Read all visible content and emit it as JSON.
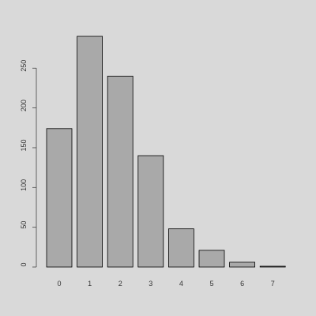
{
  "chart_data": {
    "type": "bar",
    "title": "",
    "xlabel": "",
    "ylabel": "",
    "categories": [
      "0",
      "1",
      "2",
      "3",
      "4",
      "5",
      "6",
      "7"
    ],
    "values": [
      174,
      290,
      240,
      140,
      48,
      21,
      6,
      1
    ],
    "ylim": [
      0,
      290
    ],
    "yticks": [
      0,
      50,
      100,
      150,
      200,
      250
    ],
    "grid": false,
    "legend": "none",
    "colors": {
      "background": "#d9d9d9",
      "bar_fill": "#a9a9a9",
      "bar_stroke": "#000000",
      "text": "#333333"
    }
  }
}
